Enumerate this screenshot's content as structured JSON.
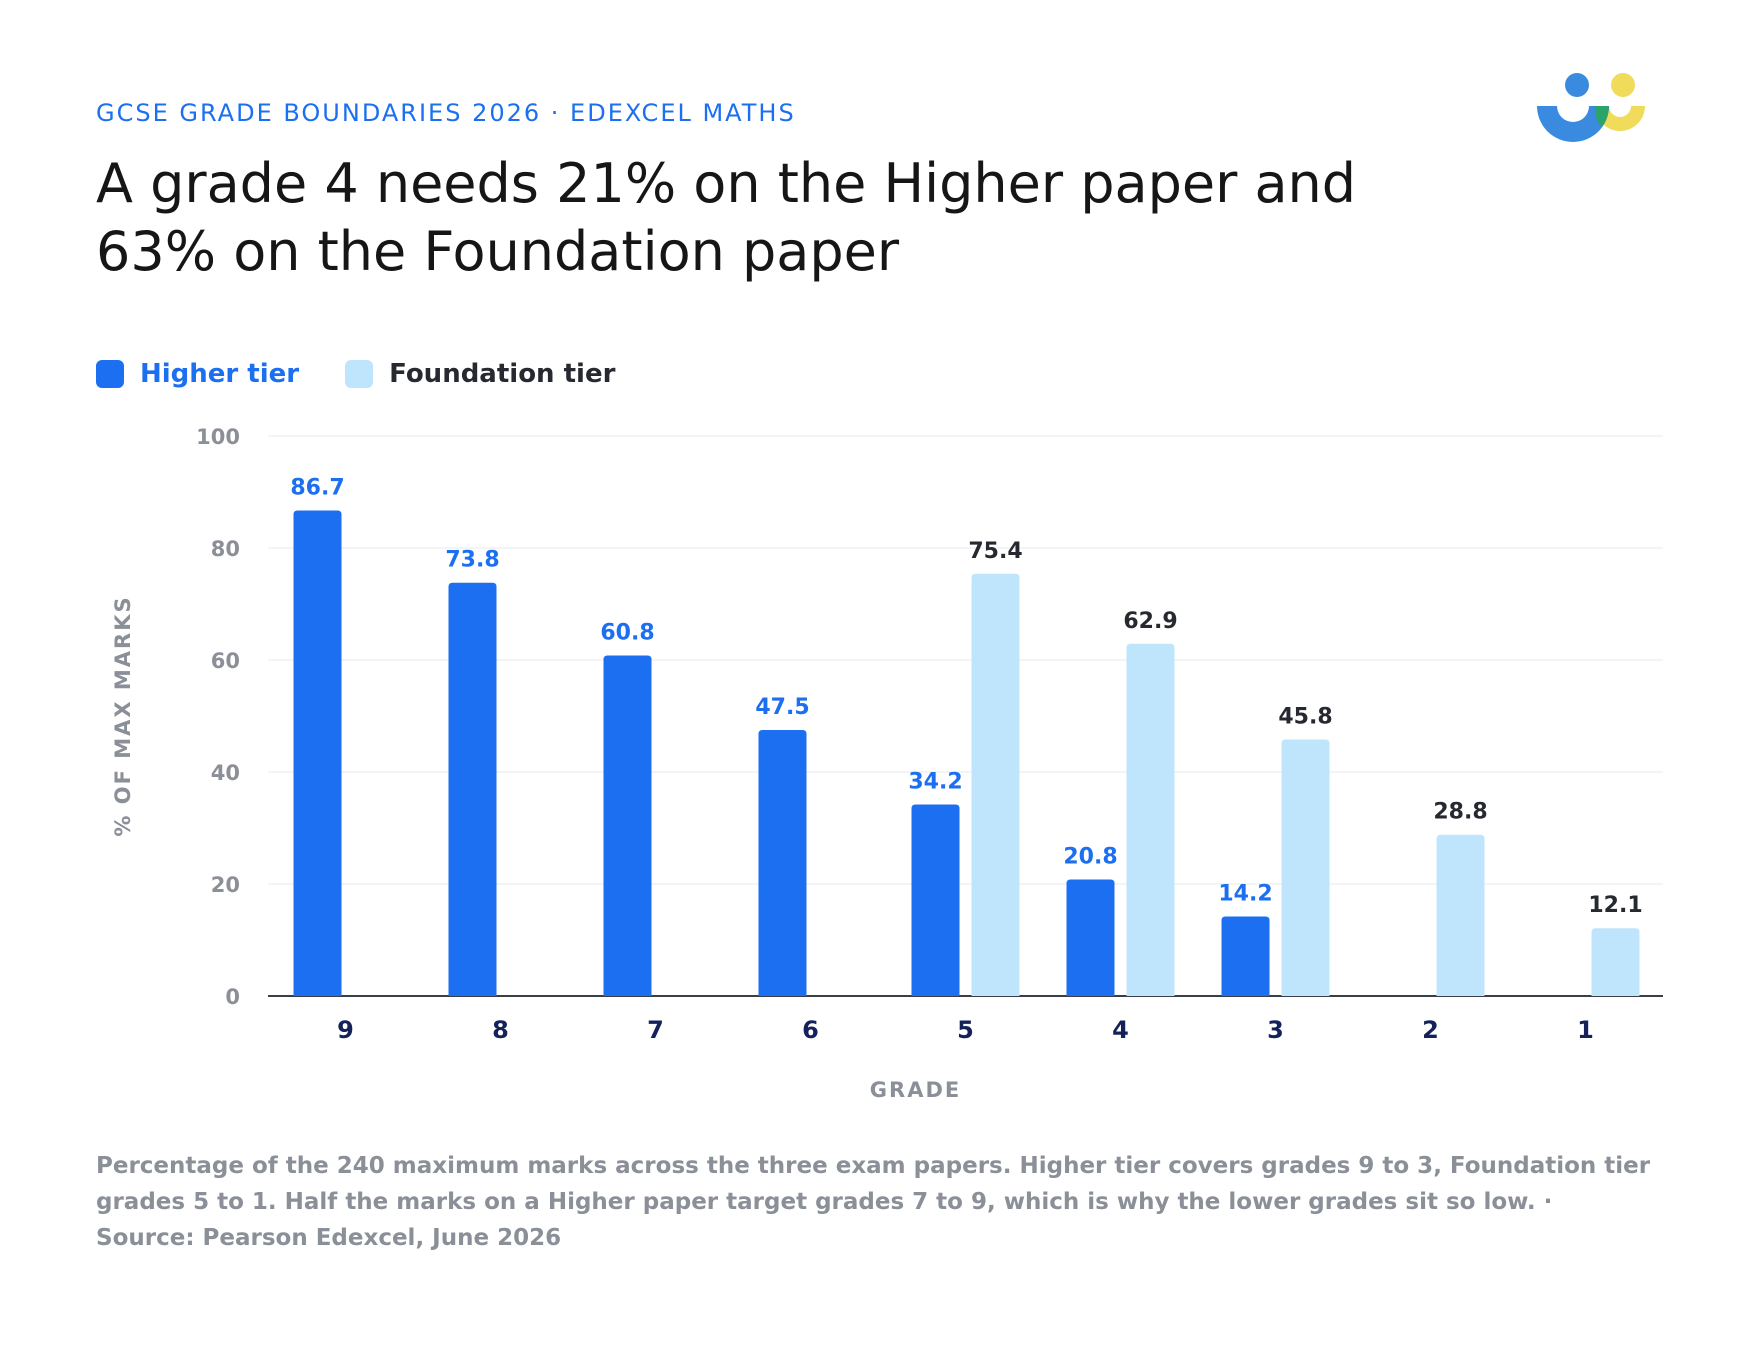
{
  "header": {
    "kicker": "GCSE GRADE BOUNDARIES 2026 · EDEXCEL MATHS",
    "headline_line1": "A grade 4 needs 21% on the Higher paper and",
    "headline_line2": "63% on the Foundation paper"
  },
  "logo": {
    "icon": "people-logo-icon",
    "colors": [
      "#3a8be0",
      "#f1db5a",
      "#2ba36b"
    ]
  },
  "legend": [
    {
      "label": "Higher tier",
      "color": "#1b6ff0",
      "text_color": "#1b6ff0"
    },
    {
      "label": "Foundation tier",
      "color": "#bfe5fc",
      "text_color": "#262a30"
    }
  ],
  "footnote": "Percentage of the 240 maximum marks across the three exam papers. Higher tier covers grades 9 to 3, Foundation tier grades 5 to 1. Half the marks on a Higher paper target grades 7 to 9, which is why the lower grades sit so low. · Source: Pearson Edexcel, June 2026",
  "chart_data": {
    "type": "bar",
    "title": "",
    "xlabel": "GRADE",
    "ylabel": "% OF MAX MARKS",
    "ylim": [
      0,
      100
    ],
    "yticks": [
      0,
      20,
      40,
      60,
      80,
      100
    ],
    "grid": true,
    "legend_position": "top-left",
    "categories": [
      "9",
      "8",
      "7",
      "6",
      "5",
      "4",
      "3",
      "2",
      "1"
    ],
    "series": [
      {
        "name": "Higher tier",
        "color": "#1b6ff0",
        "label_color": "#1b6ff0",
        "values": [
          86.7,
          73.8,
          60.8,
          47.5,
          34.2,
          20.8,
          14.2,
          null,
          null
        ]
      },
      {
        "name": "Foundation tier",
        "color": "#bfe5fc",
        "label_color": "#262a30",
        "values": [
          null,
          null,
          null,
          null,
          75.4,
          62.9,
          45.8,
          28.8,
          12.1
        ]
      }
    ]
  }
}
